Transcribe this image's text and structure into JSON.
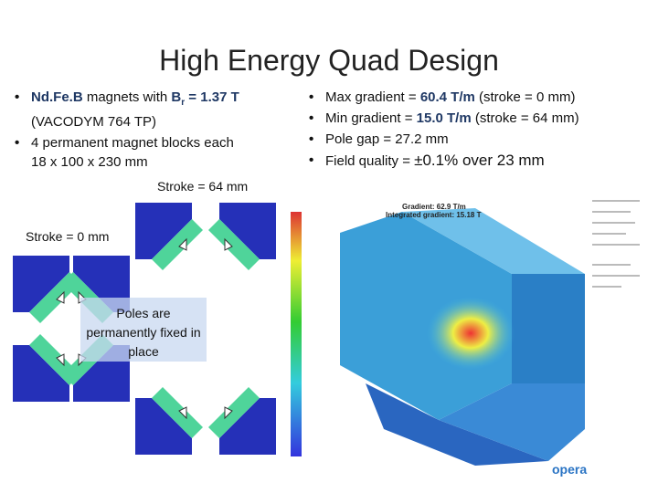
{
  "title": "High Energy Quad Design",
  "left_bullets": [
    [
      "Nd.Fe.B",
      " magnets with ",
      "B",
      "r",
      " = 1.37 T",
      " (VACODYM 764 TP)"
    ],
    [
      "4 permanent magnet blocks each 18 x 100 x 230 mm"
    ]
  ],
  "right_bullets": [
    [
      "Max gradient = ",
      "60.4 T/m",
      " (stroke = 0 mm)"
    ],
    [
      "Min gradient = ",
      "15.0 T/m",
      " (stroke = 64 mm)"
    ],
    [
      "Pole gap = 27.2 mm"
    ],
    [
      "Field quality = ",
      "±0.1% over 23 mm"
    ]
  ],
  "figure": {
    "stroke_64": "Stroke = 64 mm",
    "stroke_0": "Stroke = 0 mm",
    "poles_note": "Poles are permanently fixed in place"
  },
  "render": {
    "labels": [
      "Gradient: 62.9 T/m",
      "Integrated gradient: 15.18 T"
    ],
    "logo": "opera"
  }
}
